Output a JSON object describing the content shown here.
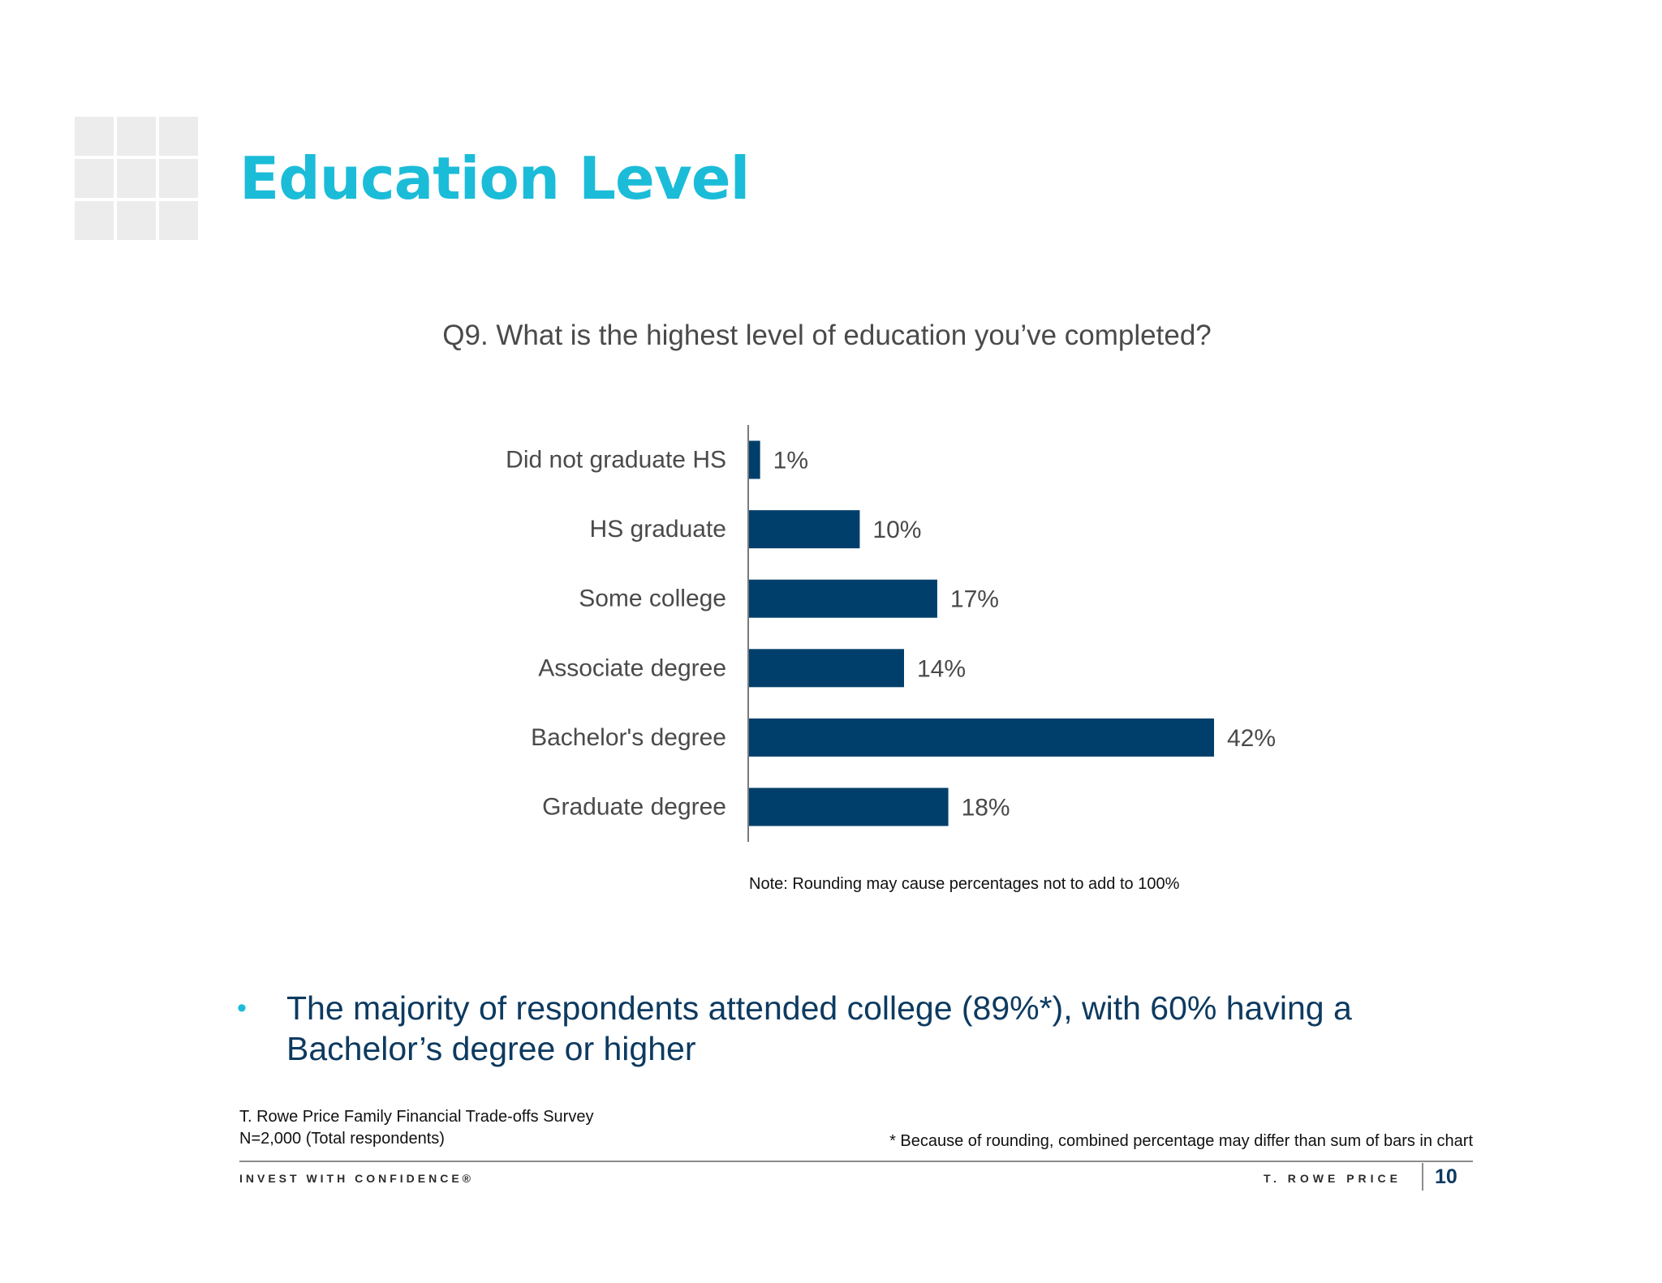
{
  "header": {
    "title": "Education Level"
  },
  "chart_data": {
    "type": "bar",
    "orientation": "horizontal",
    "title": "Q9. What is the highest level of education you’ve completed?",
    "categories": [
      "Did not graduate HS",
      "HS graduate",
      "Some college",
      "Associate degree",
      "Bachelor's degree",
      "Graduate degree"
    ],
    "values": [
      1,
      10,
      17,
      14,
      42,
      18
    ],
    "value_labels": [
      "1%",
      "10%",
      "17%",
      "14%",
      "42%",
      "18%"
    ],
    "xlabel": "",
    "ylabel": "",
    "xlim": [
      0,
      42
    ],
    "unit": "%",
    "grid": false,
    "bar_color": "#003f6b"
  },
  "note": "Note: Rounding may cause percentages not to add to 100%",
  "bullet": {
    "marker": "•",
    "text": "The majority of respondents attended college (89%*), with 60% having a Bachelor’s degree or higher"
  },
  "source": {
    "line1": "T. Rowe Price Family Financial Trade-offs Survey",
    "line2": "N=2,000 (Total respondents)"
  },
  "footnote": "* Because of rounding, combined percentage may differ than sum of bars in chart",
  "footer": {
    "tagline": "INVEST WITH CONFIDENCE®",
    "brand": "T. ROWE PRICE",
    "page_number": "10"
  },
  "colors": {
    "accent": "#1bbcd8",
    "navy": "#003f6b",
    "text_dark": "#0d3a60"
  }
}
